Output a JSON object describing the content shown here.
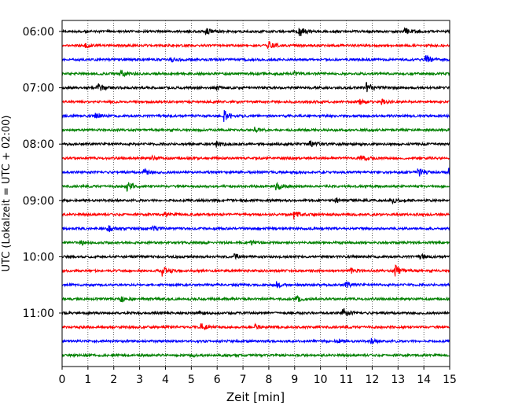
{
  "chart_data": {
    "type": "line",
    "xlabel": "Zeit  [min]",
    "ylabel": "UTC (Lokalzeit = UTC + 02:00)",
    "xlim": [
      0,
      15
    ],
    "x_ticks": [
      "0",
      "1",
      "2",
      "3",
      "4",
      "5",
      "6",
      "7",
      "8",
      "9",
      "10",
      "11",
      "12",
      "13",
      "14",
      "15"
    ],
    "y_tick_labels": [
      "06:00",
      "07:00",
      "08:00",
      "09:00",
      "10:00",
      "11:00"
    ],
    "y_tick_rows": [
      0,
      4,
      8,
      12,
      16,
      20
    ],
    "row_count": 24,
    "row_interval_minutes": 15,
    "grid_x": true,
    "trace_colors": [
      "#000000",
      "#ff0000",
      "#0000ff",
      "#008000"
    ],
    "rows": [
      {
        "start": "06:00",
        "events": [
          {
            "t": 9.2,
            "a": 1.0
          },
          {
            "t": 5.6,
            "a": 0.6
          },
          {
            "t": 13.3,
            "a": 0.6
          }
        ]
      },
      {
        "start": "06:15",
        "events": [
          {
            "t": 8.0,
            "a": 0.8
          },
          {
            "t": 0.9,
            "a": 0.4
          }
        ]
      },
      {
        "start": "06:30",
        "events": [
          {
            "t": 14.1,
            "a": 0.9
          },
          {
            "t": 4.2,
            "a": 0.4
          }
        ]
      },
      {
        "start": "06:45",
        "events": [
          {
            "t": 2.3,
            "a": 0.6
          },
          {
            "t": 9.0,
            "a": 0.3
          }
        ]
      },
      {
        "start": "07:00",
        "events": [
          {
            "t": 11.8,
            "a": 1.0
          },
          {
            "t": 1.4,
            "a": 0.7
          },
          {
            "t": 6.0,
            "a": 0.4
          }
        ]
      },
      {
        "start": "07:15",
        "events": [
          {
            "t": 11.5,
            "a": 0.5
          },
          {
            "t": 12.4,
            "a": 0.4
          }
        ]
      },
      {
        "start": "07:30",
        "events": [
          {
            "t": 6.3,
            "a": 1.0
          },
          {
            "t": 1.3,
            "a": 0.4
          }
        ]
      },
      {
        "start": "07:45",
        "events": [
          {
            "t": 7.5,
            "a": 0.5
          }
        ]
      },
      {
        "start": "08:00",
        "events": [
          {
            "t": 9.6,
            "a": 0.8
          },
          {
            "t": 6.0,
            "a": 0.5
          }
        ]
      },
      {
        "start": "08:15",
        "events": [
          {
            "t": 11.6,
            "a": 0.5
          },
          {
            "t": 3.5,
            "a": 0.3
          }
        ]
      },
      {
        "start": "08:30",
        "events": [
          {
            "t": 13.8,
            "a": 0.9
          },
          {
            "t": 15.0,
            "a": 0.9
          },
          {
            "t": 3.2,
            "a": 0.5
          }
        ]
      },
      {
        "start": "08:45",
        "events": [
          {
            "t": 2.5,
            "a": 1.0
          },
          {
            "t": 8.3,
            "a": 0.9
          }
        ]
      },
      {
        "start": "09:00",
        "events": [
          {
            "t": 10.6,
            "a": 0.5
          },
          {
            "t": 12.8,
            "a": 0.4
          }
        ]
      },
      {
        "start": "09:15",
        "events": [
          {
            "t": 9.0,
            "a": 0.8
          },
          {
            "t": 4.0,
            "a": 0.3
          }
        ]
      },
      {
        "start": "09:30",
        "events": [
          {
            "t": 1.8,
            "a": 0.6
          },
          {
            "t": 3.5,
            "a": 0.4
          }
        ]
      },
      {
        "start": "09:45",
        "events": [
          {
            "t": 0.7,
            "a": 0.4
          },
          {
            "t": 7.3,
            "a": 0.4
          }
        ]
      },
      {
        "start": "10:00",
        "events": [
          {
            "t": 6.7,
            "a": 0.4
          },
          {
            "t": 13.9,
            "a": 0.4
          }
        ]
      },
      {
        "start": "10:15",
        "events": [
          {
            "t": 3.9,
            "a": 1.0
          },
          {
            "t": 12.9,
            "a": 1.0
          },
          {
            "t": 11.2,
            "a": 0.4
          }
        ]
      },
      {
        "start": "10:30",
        "events": [
          {
            "t": 8.3,
            "a": 0.6
          },
          {
            "t": 11.0,
            "a": 0.5
          }
        ]
      },
      {
        "start": "10:45",
        "events": [
          {
            "t": 2.3,
            "a": 0.5
          },
          {
            "t": 9.1,
            "a": 0.4
          }
        ]
      },
      {
        "start": "11:00",
        "events": [
          {
            "t": 10.9,
            "a": 0.9
          },
          {
            "t": 5.3,
            "a": 0.4
          }
        ]
      },
      {
        "start": "11:15",
        "events": [
          {
            "t": 5.4,
            "a": 0.8
          },
          {
            "t": 7.5,
            "a": 0.4
          }
        ]
      },
      {
        "start": "11:30",
        "events": [
          {
            "t": 10.7,
            "a": 0.4
          },
          {
            "t": 12.0,
            "a": 0.4
          }
        ]
      },
      {
        "start": "11:45",
        "events": [
          {
            "t": 5.0,
            "a": 0.3
          }
        ]
      }
    ]
  }
}
